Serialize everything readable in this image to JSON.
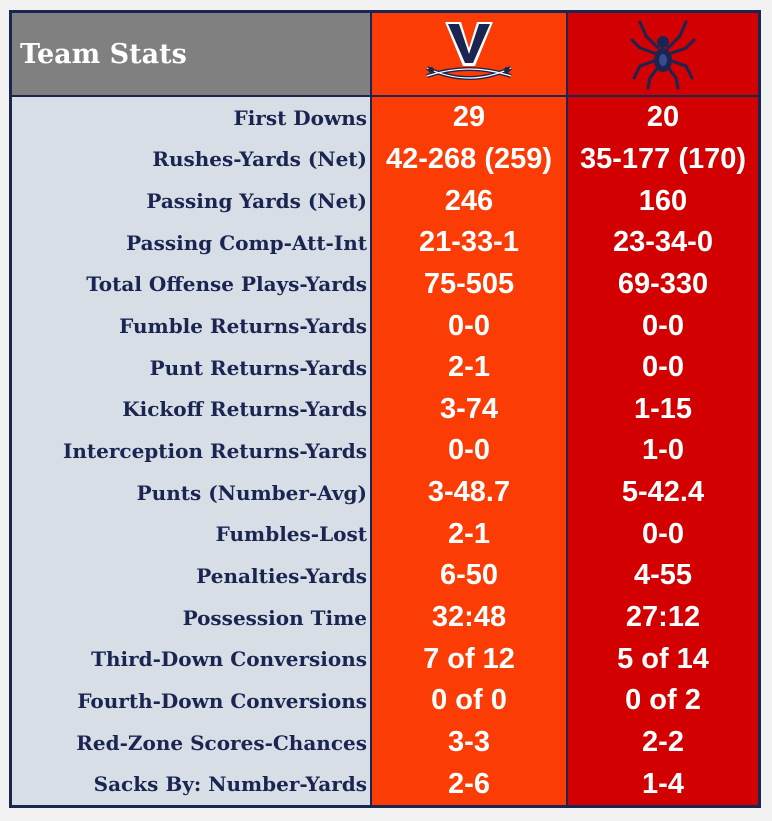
{
  "title": "Team Stats",
  "colors": {
    "team1_bg": "#fb3c04",
    "team2_bg": "#d20000",
    "navy": "#1a2552",
    "label_bg": "#d8dee6",
    "title_bg": "#808080"
  },
  "logos": {
    "team1": "v-sabres-logo-icon",
    "team2": "spider-logo-icon"
  },
  "rows": [
    {
      "label": "First Downs",
      "team1": "29",
      "team2": "20"
    },
    {
      "label": "Rushes-Yards (Net)",
      "team1": "42-268 (259)",
      "team2": "35-177 (170)"
    },
    {
      "label": "Passing Yards (Net)",
      "team1": "246",
      "team2": "160"
    },
    {
      "label": "Passing Comp-Att-Int",
      "team1": "21-33-1",
      "team2": "23-34-0"
    },
    {
      "label": "Total Offense Plays-Yards",
      "team1": "75-505",
      "team2": "69-330"
    },
    {
      "label": "Fumble Returns-Yards",
      "team1": "0-0",
      "team2": "0-0"
    },
    {
      "label": "Punt Returns-Yards",
      "team1": "2-1",
      "team2": "0-0"
    },
    {
      "label": "Kickoff Returns-Yards",
      "team1": "3-74",
      "team2": "1-15"
    },
    {
      "label": "Interception Returns-Yards",
      "team1": "0-0",
      "team2": "1-0"
    },
    {
      "label": "Punts (Number-Avg)",
      "team1": "3-48.7",
      "team2": "5-42.4"
    },
    {
      "label": "Fumbles-Lost",
      "team1": "2-1",
      "team2": "0-0"
    },
    {
      "label": "Penalties-Yards",
      "team1": "6-50",
      "team2": "4-55"
    },
    {
      "label": "Possession Time",
      "team1": "32:48",
      "team2": "27:12"
    },
    {
      "label": "Third-Down Conversions",
      "team1": "7 of 12",
      "team2": "5 of 14"
    },
    {
      "label": "Fourth-Down Conversions",
      "team1": "0 of 0",
      "team2": "0 of 2"
    },
    {
      "label": "Red-Zone Scores-Chances",
      "team1": "3-3",
      "team2": "2-2"
    },
    {
      "label": "Sacks By: Number-Yards",
      "team1": "2-6",
      "team2": "1-4"
    }
  ]
}
